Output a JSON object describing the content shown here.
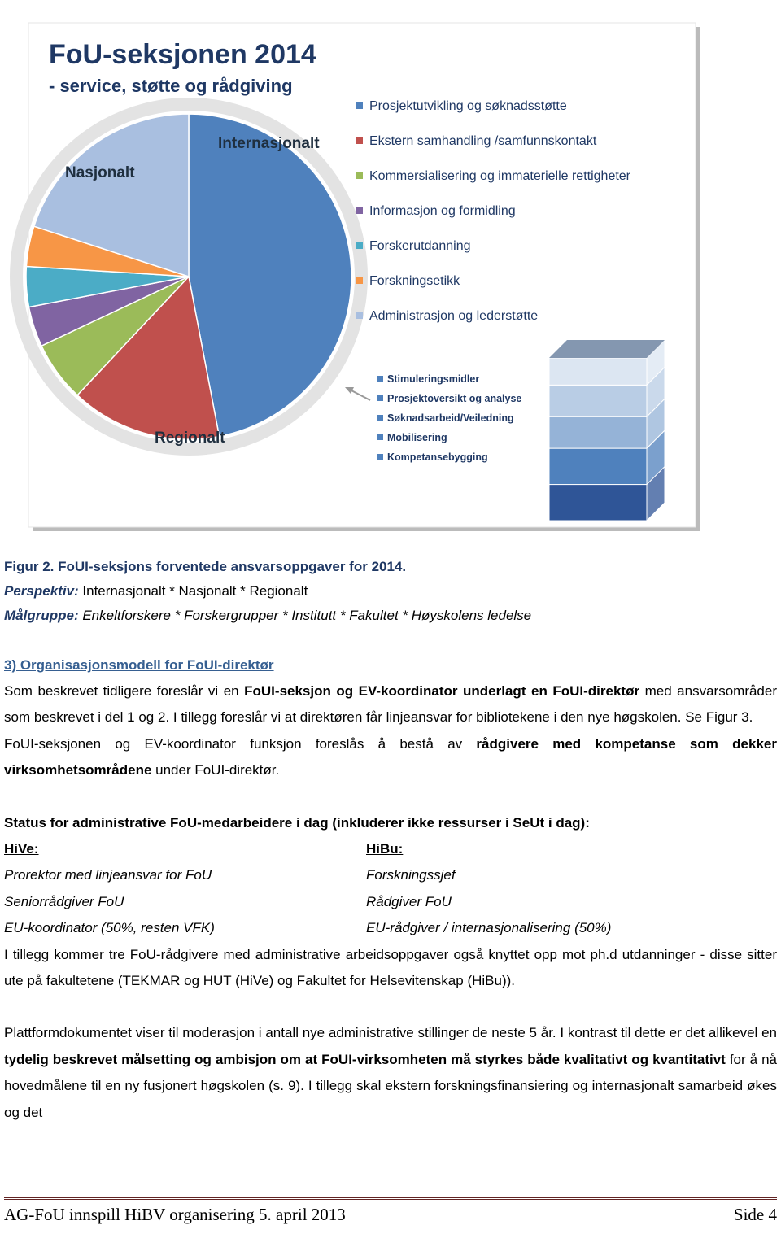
{
  "figure": {
    "chart": {
      "type": "pie",
      "title": "FoU-seksjonen 2014",
      "subtitle": "- service, støtte og rådgiving",
      "categories": [
        "Prosjektutvikling og søknadsstøtte",
        "Ekstern samhandling /samfunnskontakt",
        "Kommersialisering og immaterielle rettigheter",
        "Informasjon og formidling",
        "Forskerutdanning",
        "Forskningsetikk",
        "Administrasjon og lederstøtte"
      ],
      "values": [
        47,
        15,
        6,
        4,
        4,
        4,
        20
      ],
      "colors": [
        "#4f81bd",
        "#c0504d",
        "#9bbb59",
        "#8064a2",
        "#4bacc6",
        "#f79646",
        "#a9bfe0"
      ],
      "annotations": [
        "Internasjonalt",
        "Nasjonalt",
        "Regionalt"
      ]
    },
    "stack": {
      "type": "stacked-bar",
      "categories": [
        "Stimuleringsmidler",
        "Prosjektoversikt og analyse",
        "Søknadsarbeid/Veiledning",
        "Mobilisering",
        "Kompetansebygging"
      ],
      "values": [
        30,
        35,
        35,
        40,
        40
      ],
      "colors": [
        "#dce6f2",
        "#b9cde5",
        "#95b3d7",
        "#4f81bd",
        "#2f5597"
      ]
    }
  },
  "caption": {
    "title": "Figur 2. FoUI-seksjons forventede ansvarsoppgaver for 2014.",
    "perspective_label": "Perspektiv:",
    "perspective": "Internasjonalt * Nasjonalt * Regionalt",
    "target_label": "Målgruppe:",
    "target": "Enkeltforskere * Forskergrupper * Institutt * Fakultet * Høyskolens ledelse"
  },
  "section": {
    "heading": "3) Organisasjonsmodell for FoUI-direktør",
    "paragraphs": [
      [
        {
          "text": "Som beskrevet tidligere foreslår vi en "
        },
        {
          "text": "FoUI-seksjon og EV-koordinator underlagt en FoUI-direktør",
          "bold": true
        },
        {
          "text": " med ansvarsområder som beskrevet i del 1 og 2. I tillegg foreslår vi at direktøren får linjeansvar for bibliotekene i den nye høgskolen. Se Figur 3."
        }
      ],
      [
        {
          "text": "FoUI-seksjonen og EV-koordinator funksjon foreslås å bestå av "
        },
        {
          "text": "rådgivere med kompetanse som dekker virksomhetsområdene",
          "bold": true
        },
        {
          "text": " under FoUI-direktør."
        }
      ]
    ]
  },
  "status": {
    "heading": "Status for administrative FoU-medarbeidere i dag (inkluderer ikke ressurser i SeUt i dag):",
    "columns": [
      {
        "title": "HiVe:",
        "rows": [
          "Prorektor med linjeansvar for FoU",
          "Seniorrådgiver FoU",
          "EU-koordinator (50%, resten VFK)"
        ]
      },
      {
        "title": "HiBu:",
        "rows": [
          "Forskningssjef",
          "Rådgiver FoU",
          "EU-rådgiver / internasjonalisering (50%)"
        ]
      }
    ],
    "paragraphs": [
      [
        {
          "text": "I tillegg kommer tre FoU-rådgivere med administrative arbeidsoppgaver også knyttet opp mot ph.d utdanninger - disse sitter ute på fakultetene (TEKMAR og HUT (HiVe) og Fakultet for Helsevitenskap (HiBu))."
        }
      ],
      [
        {
          "text": "Plattformdokumentet viser til moderasjon i antall nye administrative stillinger de neste 5 år. I kontrast til dette er det allikevel en "
        },
        {
          "text": "tydelig beskrevet målsetting og ambisjon om at FoUI-virksomheten må styrkes både kvalitativt og kvantitativt",
          "bold": true
        },
        {
          "text": " for å nå hovedmålene til en ny fusjonert høgskolen (s. 9). I tillegg skal ekstern forskningsfinansiering og internasjonalt samarbeid økes og det"
        }
      ]
    ]
  },
  "footer": {
    "left": "AG-FoU innspill HiBV organisering 5. april 2013",
    "right": "Side 4"
  }
}
